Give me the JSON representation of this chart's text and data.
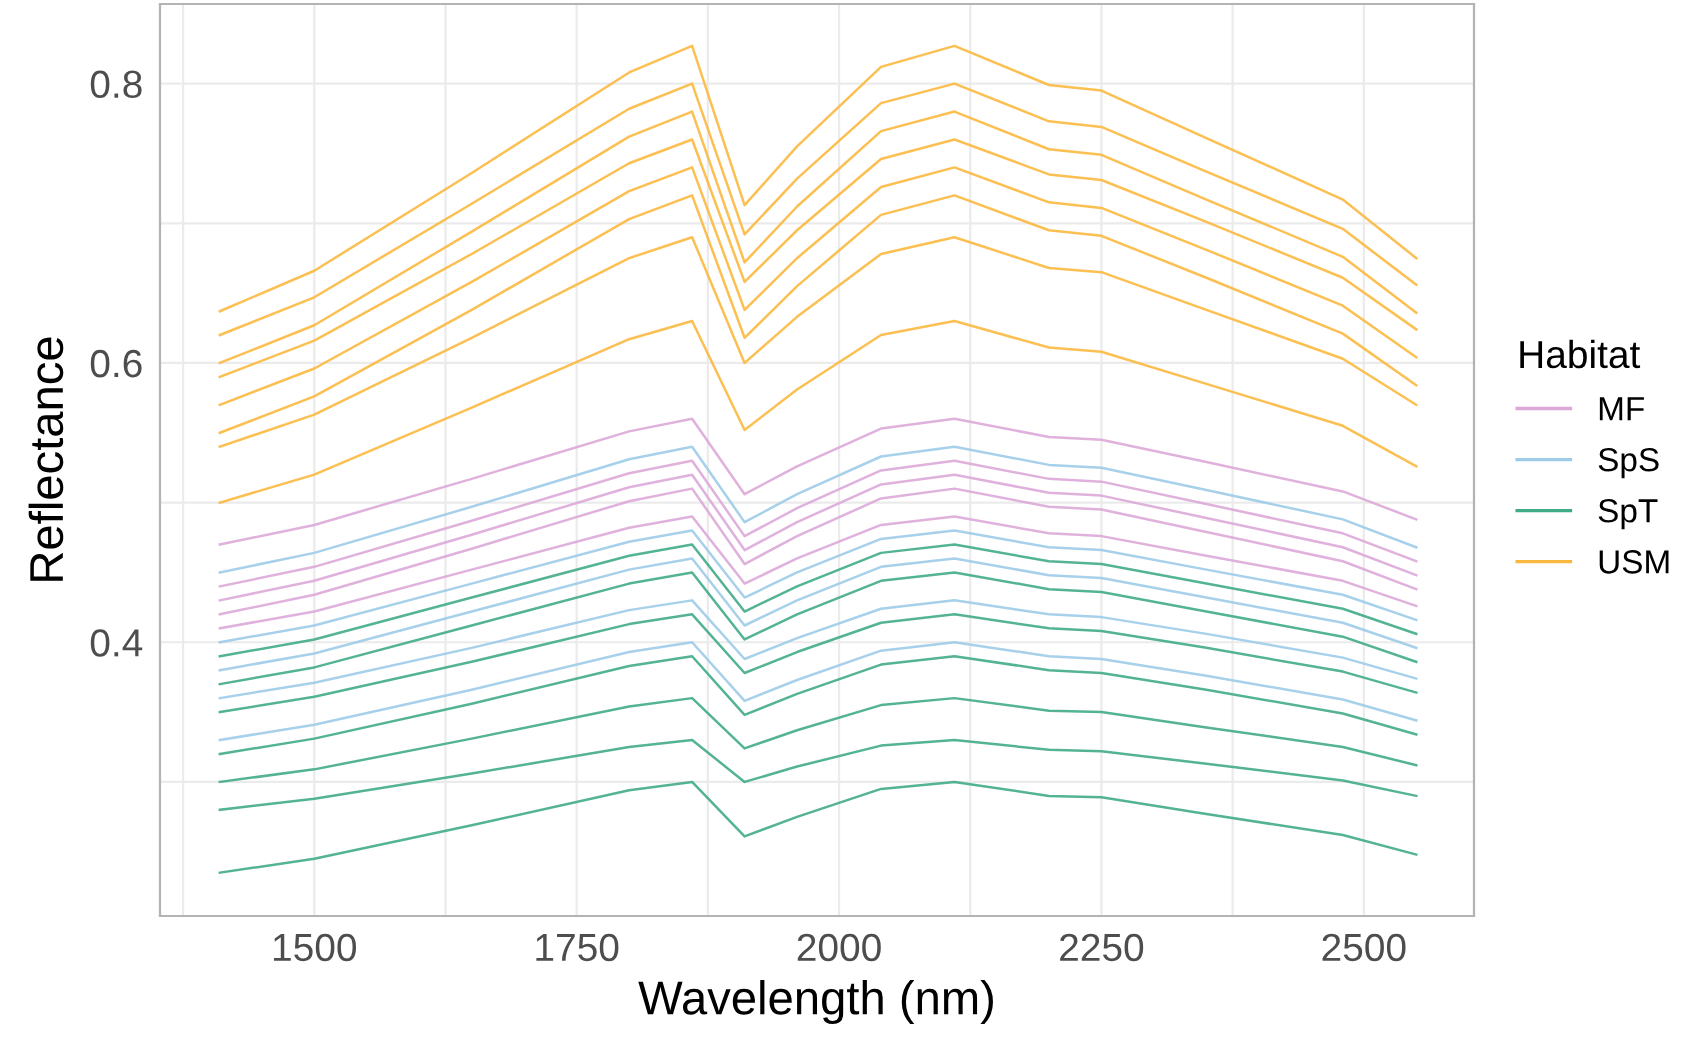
{
  "chart_data": {
    "type": "line",
    "xlabel": "Wavelength (nm)",
    "ylabel": "Reflectance",
    "legend_title": "Habitat",
    "x": [
      1410,
      1500,
      1650,
      1800,
      1860,
      1910,
      1960,
      2040,
      2110,
      2200,
      2250,
      2350,
      2480,
      2550
    ],
    "xlim": [
      1353,
      2605
    ],
    "ylim": [
      0.204,
      0.857
    ],
    "xticks": [
      {
        "value": 1375,
        "label": null
      },
      1500,
      {
        "value": 1625,
        "label": null
      },
      1750,
      {
        "value": 1875,
        "label": null
      },
      2000,
      {
        "value": 2125,
        "label": null
      },
      2250,
      {
        "value": 2375,
        "label": null
      },
      2500
    ],
    "yticks": [
      {
        "value": 0.3,
        "label": null
      },
      0.4,
      {
        "value": 0.5,
        "label": null
      },
      0.6,
      {
        "value": 0.7,
        "label": null
      },
      0.8
    ],
    "grid": true,
    "legend": "right",
    "marker": "none",
    "line_style": "solid",
    "series": [
      {
        "name": "MF",
        "color": "#dba8d8",
        "values": [
          0.47,
          0.484,
          0.517,
          0.551,
          0.56,
          0.506,
          0.526,
          0.553,
          0.56,
          0.547,
          0.545,
          0.529,
          0.508,
          0.488
        ]
      },
      {
        "color": "#dba8d8",
        "values": [
          0.44,
          0.454,
          0.487,
          0.521,
          0.53,
          0.476,
          0.496,
          0.523,
          0.53,
          0.517,
          0.515,
          0.499,
          0.478,
          0.458
        ]
      },
      {
        "color": "#dba8d8",
        "values": [
          0.42,
          0.434,
          0.467,
          0.501,
          0.51,
          0.456,
          0.476,
          0.503,
          0.51,
          0.497,
          0.495,
          0.479,
          0.458,
          0.438
        ]
      },
      {
        "color": "#dba8d8",
        "values": [
          0.41,
          0.422,
          0.452,
          0.482,
          0.49,
          0.442,
          0.46,
          0.484,
          0.49,
          0.478,
          0.476,
          0.462,
          0.444,
          0.426
        ]
      },
      {
        "color": "#dba8d8",
        "values": [
          0.43,
          0.444,
          0.477,
          0.511,
          0.52,
          0.466,
          0.486,
          0.513,
          0.52,
          0.507,
          0.505,
          0.489,
          0.468,
          0.448
        ]
      },
      {
        "name": "SpS",
        "color": "#9dcbe8",
        "values": [
          0.45,
          0.464,
          0.497,
          0.531,
          0.54,
          0.486,
          0.506,
          0.533,
          0.54,
          0.527,
          0.525,
          0.509,
          0.488,
          0.468
        ]
      },
      {
        "color": "#9dcbe8",
        "values": [
          0.4,
          0.412,
          0.442,
          0.472,
          0.48,
          0.432,
          0.45,
          0.474,
          0.48,
          0.468,
          0.466,
          0.452,
          0.434,
          0.416
        ]
      },
      {
        "color": "#9dcbe8",
        "values": [
          0.36,
          0.371,
          0.396,
          0.423,
          0.43,
          0.388,
          0.403,
          0.424,
          0.43,
          0.42,
          0.418,
          0.406,
          0.389,
          0.374
        ]
      },
      {
        "color": "#9dcbe8",
        "values": [
          0.33,
          0.341,
          0.366,
          0.393,
          0.4,
          0.358,
          0.373,
          0.394,
          0.4,
          0.39,
          0.388,
          0.376,
          0.359,
          0.344
        ]
      },
      {
        "color": "#9dcbe8",
        "values": [
          0.38,
          0.392,
          0.422,
          0.452,
          0.46,
          0.412,
          0.43,
          0.454,
          0.46,
          0.448,
          0.446,
          0.432,
          0.414,
          0.396
        ]
      },
      {
        "name": "SpT",
        "color": "#40ab88",
        "values": [
          0.39,
          0.402,
          0.432,
          0.462,
          0.47,
          0.422,
          0.44,
          0.464,
          0.47,
          0.458,
          0.456,
          0.442,
          0.424,
          0.406
        ]
      },
      {
        "color": "#40ab88",
        "values": [
          0.37,
          0.382,
          0.412,
          0.442,
          0.45,
          0.402,
          0.42,
          0.444,
          0.45,
          0.438,
          0.436,
          0.422,
          0.404,
          0.386
        ]
      },
      {
        "color": "#40ab88",
        "values": [
          0.35,
          0.361,
          0.386,
          0.413,
          0.42,
          0.378,
          0.393,
          0.414,
          0.42,
          0.41,
          0.408,
          0.396,
          0.379,
          0.364
        ]
      },
      {
        "color": "#40ab88",
        "values": [
          0.32,
          0.331,
          0.356,
          0.383,
          0.39,
          0.348,
          0.363,
          0.384,
          0.39,
          0.38,
          0.378,
          0.366,
          0.349,
          0.334
        ]
      },
      {
        "color": "#40ab88",
        "values": [
          0.3,
          0.309,
          0.331,
          0.354,
          0.36,
          0.324,
          0.337,
          0.355,
          0.36,
          0.351,
          0.35,
          0.339,
          0.325,
          0.312
        ]
      },
      {
        "color": "#40ab88",
        "values": [
          0.28,
          0.288,
          0.306,
          0.325,
          0.33,
          0.3,
          0.311,
          0.326,
          0.33,
          0.323,
          0.322,
          0.313,
          0.301,
          0.29
        ]
      },
      {
        "color": "#40ab88",
        "values": [
          0.235,
          0.245,
          0.269,
          0.294,
          0.3,
          0.261,
          0.275,
          0.295,
          0.3,
          0.29,
          0.289,
          0.277,
          0.262,
          0.248
        ]
      },
      {
        "name": "USM",
        "color": "#fbb83f",
        "values": [
          0.637,
          0.666,
          0.736,
          0.808,
          0.827,
          0.713,
          0.755,
          0.812,
          0.827,
          0.799,
          0.795,
          0.761,
          0.717,
          0.675
        ]
      },
      {
        "color": "#fbb83f",
        "values": [
          0.62,
          0.647,
          0.714,
          0.782,
          0.8,
          0.692,
          0.732,
          0.786,
          0.8,
          0.773,
          0.769,
          0.737,
          0.696,
          0.656
        ]
      },
      {
        "color": "#fbb83f",
        "values": [
          0.6,
          0.627,
          0.694,
          0.762,
          0.78,
          0.672,
          0.712,
          0.766,
          0.78,
          0.753,
          0.749,
          0.717,
          0.676,
          0.636
        ]
      },
      {
        "color": "#fbb83f",
        "values": [
          0.59,
          0.616,
          0.678,
          0.743,
          0.76,
          0.658,
          0.695,
          0.746,
          0.76,
          0.735,
          0.731,
          0.701,
          0.661,
          0.624
        ]
      },
      {
        "color": "#fbb83f",
        "values": [
          0.57,
          0.596,
          0.658,
          0.723,
          0.74,
          0.638,
          0.675,
          0.726,
          0.74,
          0.715,
          0.711,
          0.681,
          0.641,
          0.604
        ]
      },
      {
        "color": "#fbb83f",
        "values": [
          0.55,
          0.576,
          0.638,
          0.703,
          0.72,
          0.618,
          0.655,
          0.706,
          0.72,
          0.695,
          0.691,
          0.661,
          0.621,
          0.584
        ]
      },
      {
        "color": "#fbb83f",
        "values": [
          0.54,
          0.563,
          0.618,
          0.675,
          0.69,
          0.6,
          0.633,
          0.678,
          0.69,
          0.668,
          0.665,
          0.638,
          0.603,
          0.57
        ]
      },
      {
        "color": "#fbb83f",
        "values": [
          0.5,
          0.52,
          0.568,
          0.617,
          0.63,
          0.552,
          0.581,
          0.62,
          0.63,
          0.611,
          0.608,
          0.585,
          0.555,
          0.526
        ]
      }
    ]
  }
}
